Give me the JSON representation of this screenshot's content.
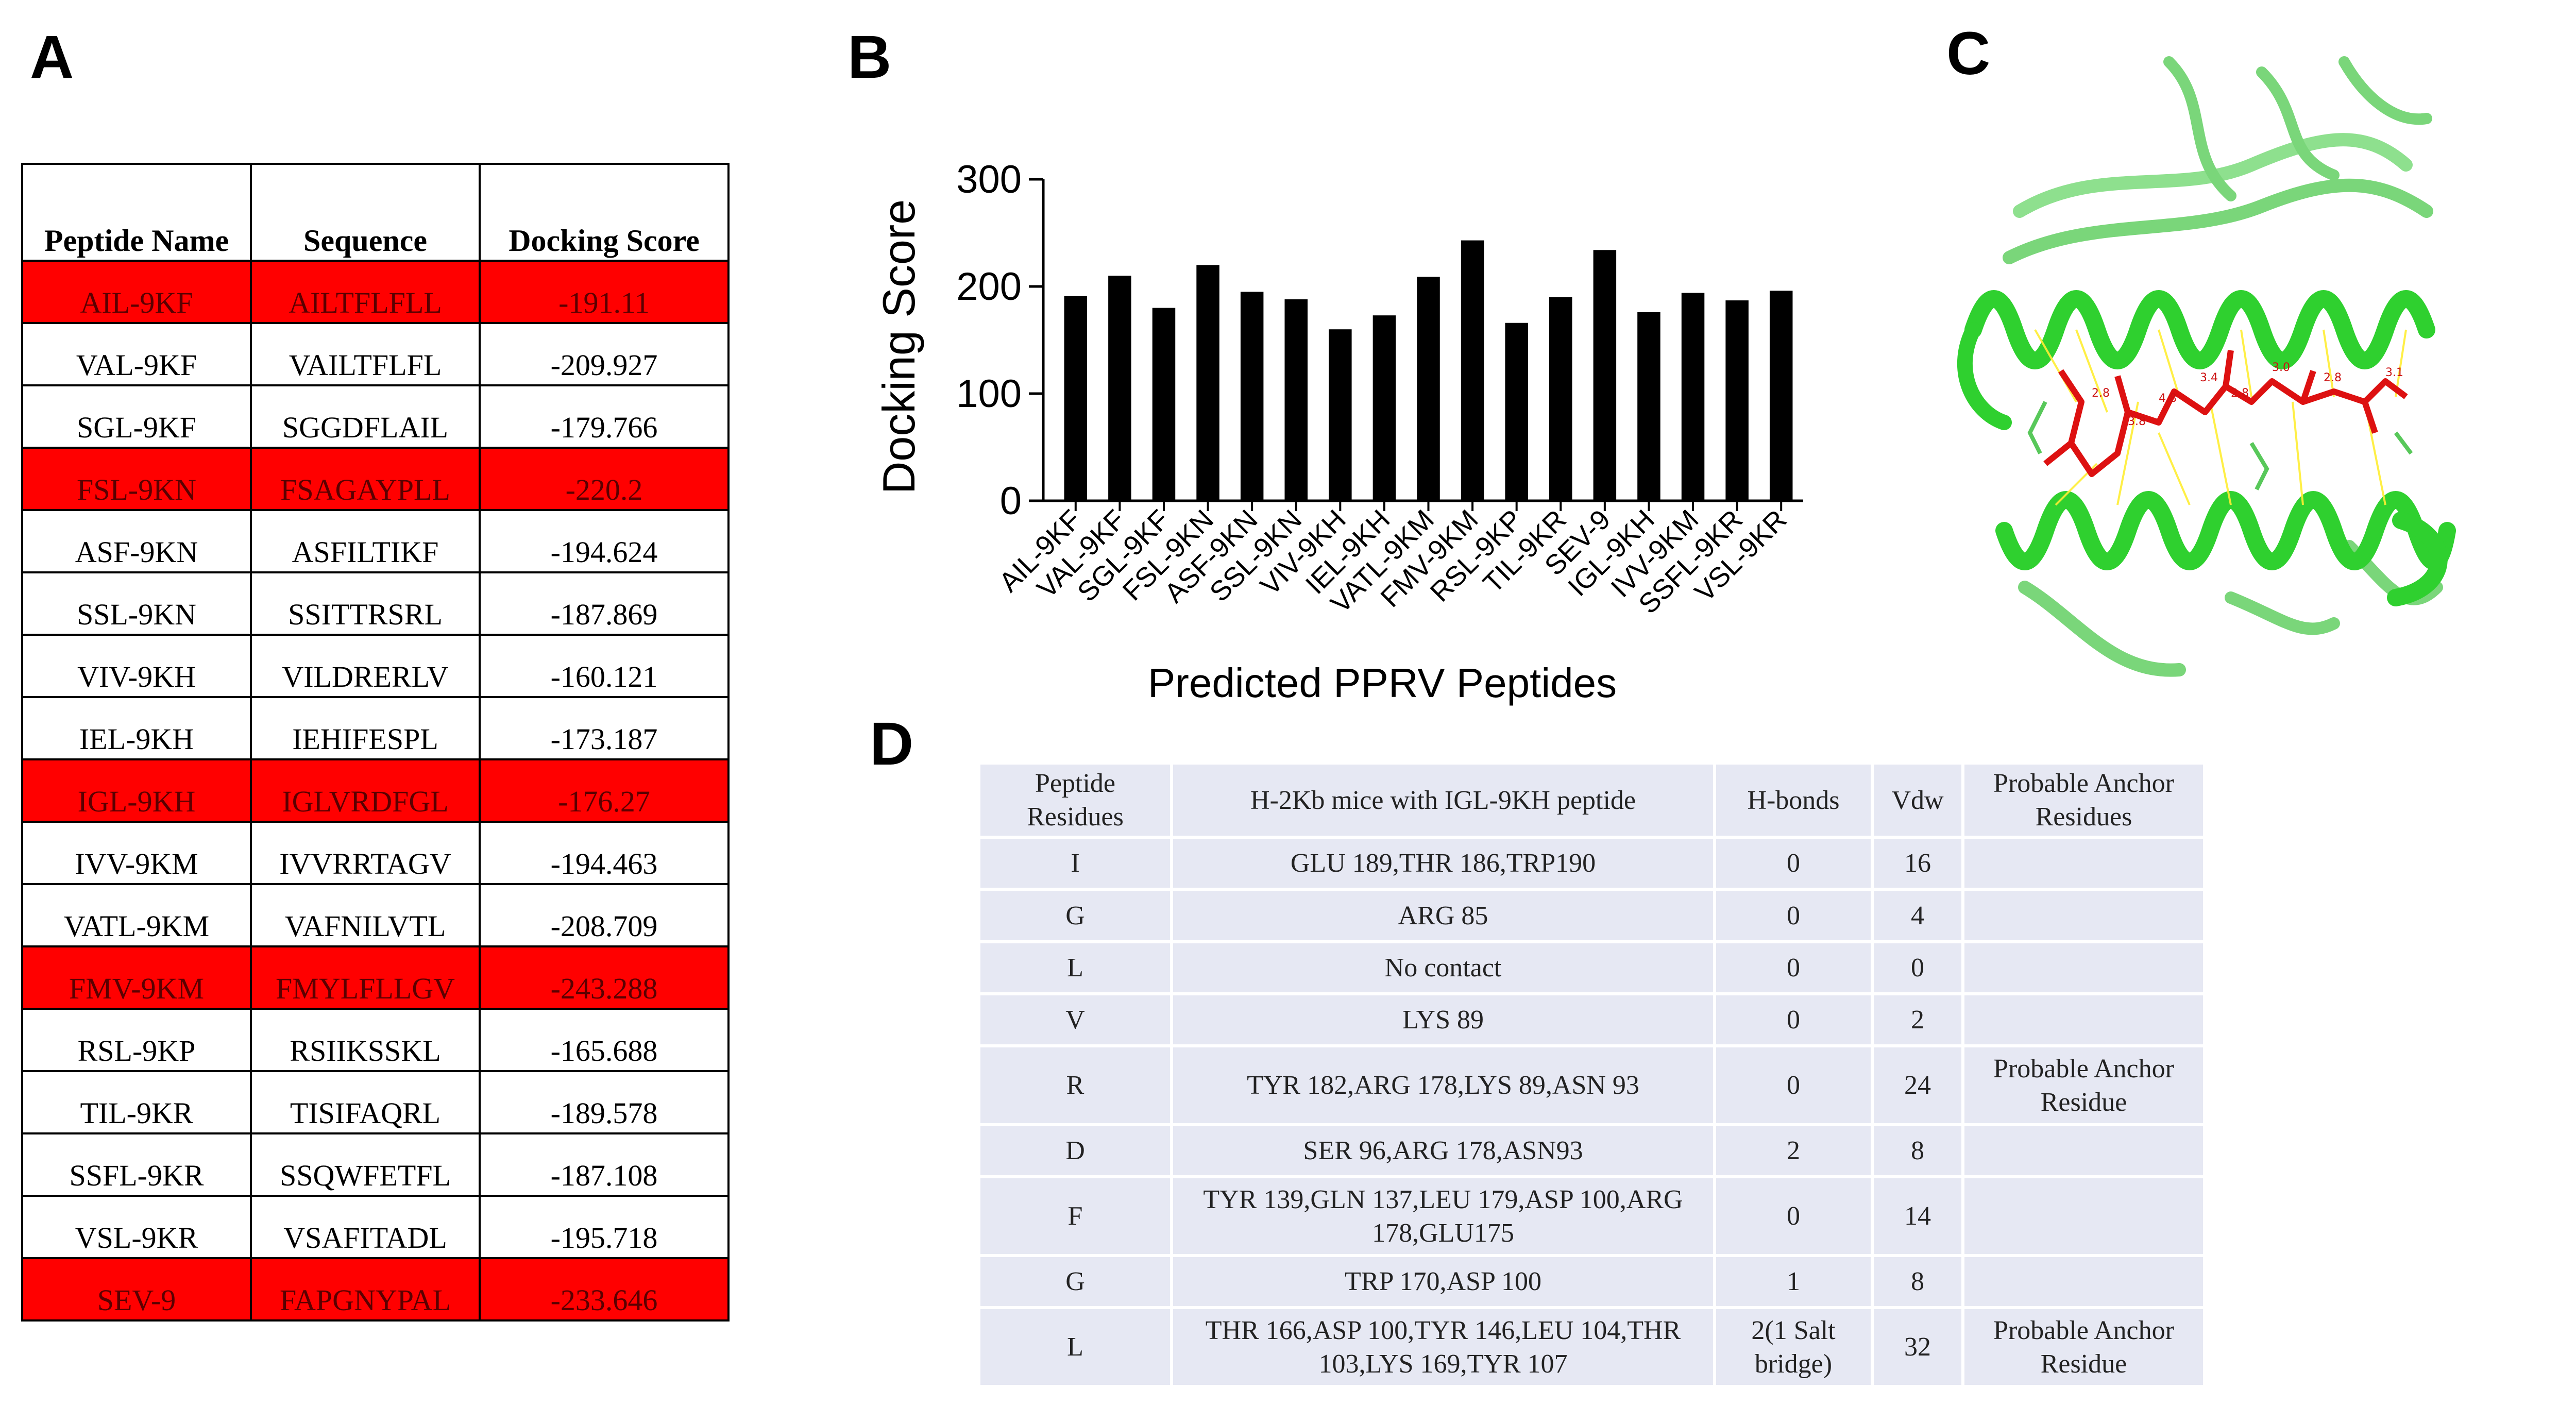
{
  "panel_labels": {
    "a": "A",
    "b": "B",
    "c": "C",
    "d": "D"
  },
  "colors": {
    "highlight": "#ff0000",
    "highlight_text": "#5a0000",
    "bar": "#000000",
    "table_d_cell": "#e6e8f3",
    "helix": "#33dd33",
    "ligand": "#dd1111",
    "contacts": "#ffee33"
  },
  "table_a": {
    "headers": [
      "Peptide Name",
      "Sequence",
      "Docking Score"
    ],
    "rows": [
      {
        "name": "AIL-9KF",
        "sequence": "AILTFLFLL",
        "score": "-191.11",
        "highlight": true
      },
      {
        "name": "VAL-9KF",
        "sequence": "VAILTFLFL",
        "score": "-209.927",
        "highlight": false
      },
      {
        "name": "SGL-9KF",
        "sequence": "SGGDFLAIL",
        "score": "-179.766",
        "highlight": false
      },
      {
        "name": "FSL-9KN",
        "sequence": "FSAGAYPLL",
        "score": "-220.2",
        "highlight": true
      },
      {
        "name": "ASF-9KN",
        "sequence": "ASFILTIKF",
        "score": "-194.624",
        "highlight": false
      },
      {
        "name": "SSL-9KN",
        "sequence": "SSITTRSRL",
        "score": "-187.869",
        "highlight": false
      },
      {
        "name": "VIV-9KH",
        "sequence": "VILDRERLV",
        "score": "-160.121",
        "highlight": false
      },
      {
        "name": "IEL-9KH",
        "sequence": "IEHIFESPL",
        "score": "-173.187",
        "highlight": false
      },
      {
        "name": "IGL-9KH",
        "sequence": "IGLVRDFGL",
        "score": "-176.27",
        "highlight": true
      },
      {
        "name": "IVV-9KM",
        "sequence": "IVVRRTAGV",
        "score": "-194.463",
        "highlight": false
      },
      {
        "name": "VATL-9KM",
        "sequence": "VAFNILVTL",
        "score": "-208.709",
        "highlight": false
      },
      {
        "name": "FMV-9KM",
        "sequence": "FMYLFLLGV",
        "score": "-243.288",
        "highlight": true
      },
      {
        "name": "RSL-9KP",
        "sequence": "RSIIKSSKL",
        "score": "-165.688",
        "highlight": false
      },
      {
        "name": "TIL-9KR",
        "sequence": "TISIFAQRL",
        "score": "-189.578",
        "highlight": false
      },
      {
        "name": "SSFL-9KR",
        "sequence": "SSQWFETFL",
        "score": "-187.108",
        "highlight": false
      },
      {
        "name": "VSL-9KR",
        "sequence": "VSAFITADL",
        "score": "-195.718",
        "highlight": false
      },
      {
        "name": "SEV-9",
        "sequence": "FAPGNYPAL",
        "score": "-233.646",
        "highlight": true
      }
    ]
  },
  "chart_data": {
    "type": "bar",
    "title": "",
    "xlabel": "Predicted PPRV Peptides",
    "ylabel": "Docking Score",
    "ylim": [
      0,
      300
    ],
    "yticks": [
      0,
      100,
      200,
      300
    ],
    "grid": false,
    "categories": [
      "AIL-9KF",
      "VAL-9KF",
      "SGL-9KF",
      "FSL-9KN",
      "ASF-9KN",
      "SSL-9KN",
      "VIV-9KH",
      "IEL-9KH",
      "VATL-9KM",
      "FMV-9KM",
      "RSL-9KP",
      "TIL-9KR",
      "SEV-9",
      "IGL-9KH",
      "IVV-9KM",
      "SSFL-9KR",
      "VSL-9KR"
    ],
    "values": [
      191,
      210,
      180,
      220,
      195,
      188,
      160,
      173,
      209,
      243,
      166,
      190,
      234,
      176,
      194,
      187,
      196
    ]
  },
  "table_d": {
    "headers": [
      "Peptide Residues",
      "H-2Kb mice with IGL-9KH  peptide",
      "H-bonds",
      "Vdw",
      "Probable Anchor Residues"
    ],
    "rows": [
      {
        "residue": "I",
        "contacts": "GLU 189,THR 186,TRP190",
        "hbonds": "0",
        "vdw": "16",
        "anchor": ""
      },
      {
        "residue": "G",
        "contacts": "ARG 85",
        "hbonds": "0",
        "vdw": "4",
        "anchor": ""
      },
      {
        "residue": "L",
        "contacts": "No contact",
        "hbonds": "0",
        "vdw": "0",
        "anchor": ""
      },
      {
        "residue": "V",
        "contacts": "LYS 89",
        "hbonds": "0",
        "vdw": "2",
        "anchor": ""
      },
      {
        "residue": "R",
        "contacts": "TYR 182,ARG 178,LYS 89,ASN 93",
        "hbonds": "0",
        "vdw": "24",
        "anchor": "Probable Anchor Residue"
      },
      {
        "residue": "D",
        "contacts": "SER 96,ARG 178,ASN93",
        "hbonds": "2",
        "vdw": "8",
        "anchor": ""
      },
      {
        "residue": "F",
        "contacts": "TYR 139,GLN 137,LEU 179,ASP 100,ARG 178,GLU175",
        "hbonds": "0",
        "vdw": "14",
        "anchor": ""
      },
      {
        "residue": "G",
        "contacts": "TRP 170,ASP 100",
        "hbonds": "1",
        "vdw": "8",
        "anchor": ""
      },
      {
        "residue": "L",
        "contacts": "THR 166,ASP 100,TYR 146,LEU 104,THR 103,LYS 169,TYR 107",
        "hbonds": "2(1 Salt bridge)",
        "vdw": "32",
        "anchor": "Probable Anchor Residue"
      }
    ]
  },
  "structure_c": {
    "distance_labels": [
      "2.8",
      "3.8",
      "4.8",
      "3.4",
      "2.8",
      "3.0",
      "2.8",
      "3.1"
    ]
  }
}
